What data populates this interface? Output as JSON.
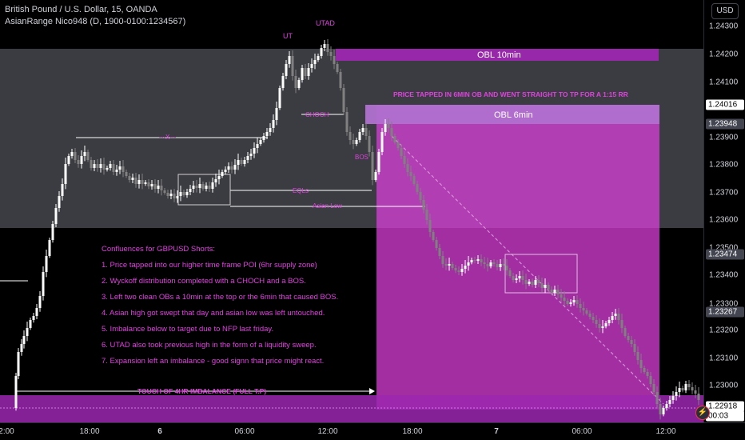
{
  "legend": {
    "symbol": "British Pound / U.S. Dollar, 15, OANDA",
    "indicator": "AsianRange Nico948 (D, 1900-0100:1234567)"
  },
  "currency_button": "USD",
  "yaxis": {
    "labels": [
      "1.24300",
      "1.24200",
      "1.24100",
      "1.23900",
      "1.23800",
      "1.23700",
      "1.23600",
      "1.23500",
      "1.23400",
      "1.23300",
      "1.23200",
      "1.23100",
      "1.23000"
    ],
    "tags": [
      {
        "text": "1.24016",
        "bg": "#ffffff",
        "fg": "#000000"
      },
      {
        "text": "1.23948",
        "bg": "#434651",
        "fg": "#ffffff"
      },
      {
        "text": "1.23474",
        "bg": "#434651",
        "fg": "#ffffff"
      },
      {
        "text": "1.23267",
        "bg": "#434651",
        "fg": "#ffffff"
      },
      {
        "text": "1.22918",
        "bg": "#ffffff",
        "fg": "#000000"
      },
      {
        "text": "00:03",
        "bg": "#ffffff",
        "fg": "#000000"
      }
    ]
  },
  "xaxis": {
    "labels": [
      {
        "text": "2:00",
        "bold": false
      },
      {
        "text": "18:00",
        "bold": false
      },
      {
        "text": "6",
        "bold": true
      },
      {
        "text": "06:00",
        "bold": false
      },
      {
        "text": "12:00",
        "bold": false
      },
      {
        "text": "18:00",
        "bold": false
      },
      {
        "text": "7",
        "bold": true
      },
      {
        "text": "06:00",
        "bold": false
      },
      {
        "text": "12:00",
        "bold": false
      }
    ]
  },
  "annotations": {
    "ut": "UT",
    "utad": "UTAD",
    "obl_10": "OBL 10min",
    "obl_6": "OBL 6min",
    "tapped_note": "PRICE TAPPED IN 6MIN OB AND WENT STRAIGHT TO TP FOR A 1:15 RR",
    "choch": "CHOCH",
    "bos": "BOS",
    "x_mark": "---X---",
    "eqls": "EQLs",
    "asian_low": "Asian Low",
    "touch": "TOUCH OF 4HR IMBALANCE (FULL T.P)"
  },
  "confluences": [
    "Confluences for GBPUSD Shorts:",
    "1. Price tapped into our higher time frame POI (6hr supply zone)",
    "2. Wyckoff distribution completed with a CHOCH and a BOS.",
    "3. Left two clean OBs a 10min at the top or the 6min that caused BOS.",
    "4. Asian high got swept that day and asian low was left untouched.",
    "5. Imbalance below to target due to NFP last friday.",
    "6. UTAD also took previous high in the form of a liquidity sweep.",
    "7. Expansion left an imbalance - good signn that price might react."
  ],
  "colors": {
    "background": "#000000",
    "supply_zone": "#6b6e78",
    "ob_purple": "#9c27b0",
    "target_magenta": "#e040e0",
    "candle_up": "#ffffff",
    "candle_down": "#808080"
  }
}
